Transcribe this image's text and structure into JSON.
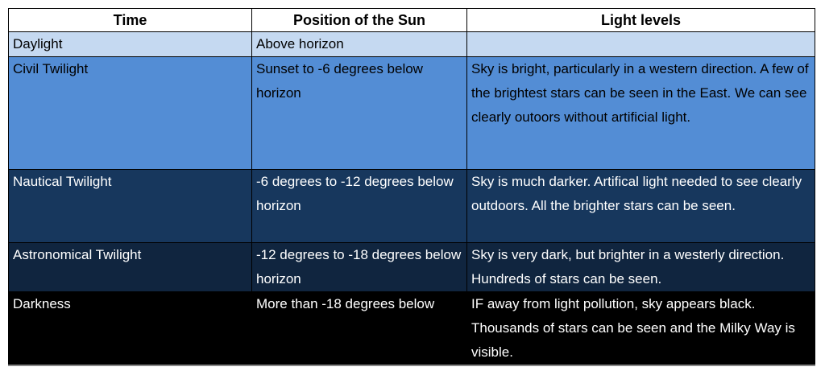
{
  "headers": [
    "Time",
    "Position of the Sun",
    "Light levels"
  ],
  "rows": [
    {
      "time": "Daylight",
      "position": "Above horizon",
      "light": "",
      "color": "#c5d9f1"
    },
    {
      "time": "Civil Twilight",
      "position": "Sunset to -6  degrees below horizon",
      "light": "Sky is bright, particularly in a western direction. A few of the brightest stars can be seen in the East. We can see clearly outoors without artificial light.",
      "color": "#538dd5"
    },
    {
      "time": "Nautical Twilight",
      "position": "-6 degrees to  -12 degrees below horizon",
      "light": "Sky is much darker. Artifical light needed to see clearly outdoors. All the brighter stars can be seen.",
      "color": "#17375d"
    },
    {
      "time": "Astronomical Twilight",
      "position": "-12 degrees to  -18 degrees below horizon",
      "light": "Sky is very dark, but brighter in a westerly direction. Hundreds of stars can be seen.",
      "color": "#10253f"
    },
    {
      "time": "Darkness",
      "position": "More than -18 degrees below",
      "light": "IF away from light pollution, sky appears black. Thousands of stars can be seen and the Milky Way is visible.",
      "color": "#000000"
    }
  ]
}
